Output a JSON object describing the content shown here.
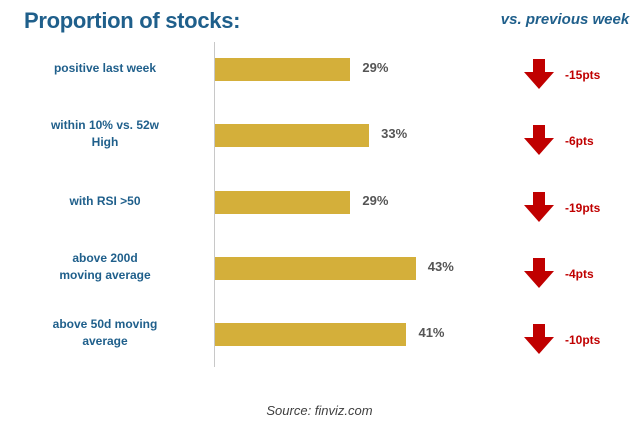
{
  "title": "Proportion of stocks:",
  "vs_header": "vs. previous week",
  "source": "Source: finviz.com",
  "colors": {
    "bar": "#d4af3a",
    "title": "#1f5f8b",
    "arrow": "#c00000",
    "axis": "#c8c8c8"
  },
  "arrow_icon": "arrow-down-icon",
  "chart_data": {
    "type": "bar",
    "orientation": "horizontal",
    "title": "Proportion of stocks:",
    "categories": [
      "positive last week",
      "within 10% vs. 52w High",
      "with RSI >50",
      "above 200d moving average",
      "above 50d moving average"
    ],
    "values": [
      29,
      33,
      29,
      43,
      41
    ],
    "value_labels": [
      "29%",
      "33%",
      "29%",
      "43%",
      "41%"
    ],
    "unit": "%",
    "change_vs_previous_week": [
      -15,
      -6,
      -19,
      -4,
      -10
    ],
    "change_labels": [
      "-15pts",
      "-6pts",
      "-19pts",
      "-4pts",
      "-10pts"
    ],
    "xlim": [
      0,
      100
    ],
    "grid": false,
    "legend": "none"
  },
  "rows": [
    {
      "label_lines": [
        "positive last week"
      ]
    },
    {
      "label_lines": [
        "within 10% vs. 52w",
        "High"
      ]
    },
    {
      "label_lines": [
        "with RSI >50"
      ]
    },
    {
      "label_lines": [
        "above 200d",
        "moving average"
      ]
    },
    {
      "label_lines": [
        "above 50d moving",
        "average"
      ]
    }
  ]
}
